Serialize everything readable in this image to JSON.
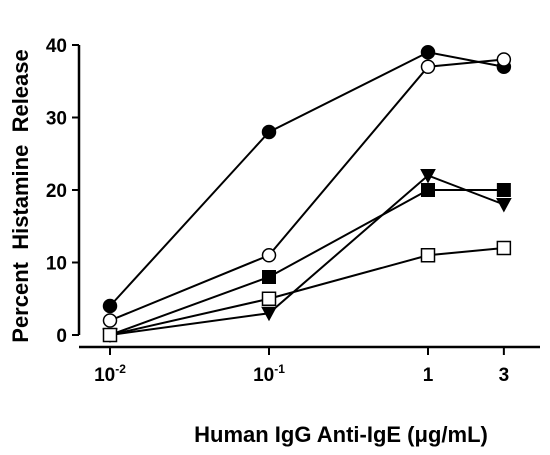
{
  "chart_data": {
    "type": "line",
    "title": "",
    "xlabel": "Human IgG Anti-IgE  (μg/mL)",
    "ylabel": "Percent  Histamine  Release",
    "x_scale": "log",
    "x": [
      0.01,
      0.1,
      1,
      3
    ],
    "x_tick_labels": [
      {
        "base": "10",
        "exp": "-2"
      },
      {
        "base": "10",
        "exp": "-1"
      },
      {
        "base": "1",
        "exp": ""
      },
      {
        "base": "3",
        "exp": ""
      }
    ],
    "y_ticks": [
      0,
      10,
      20,
      30,
      40
    ],
    "ylim": [
      0,
      42
    ],
    "legend": "none",
    "series": [
      {
        "marker": "filled-circle",
        "values": [
          4,
          28,
          39,
          37
        ]
      },
      {
        "marker": "open-circle",
        "values": [
          2,
          11,
          37,
          38
        ]
      },
      {
        "marker": "filled-down-triangle",
        "values": [
          0,
          3,
          22,
          18
        ]
      },
      {
        "marker": "filled-square",
        "values": [
          0,
          8,
          20,
          20
        ]
      },
      {
        "marker": "open-square",
        "values": [
          0,
          5,
          11,
          12
        ]
      }
    ]
  }
}
